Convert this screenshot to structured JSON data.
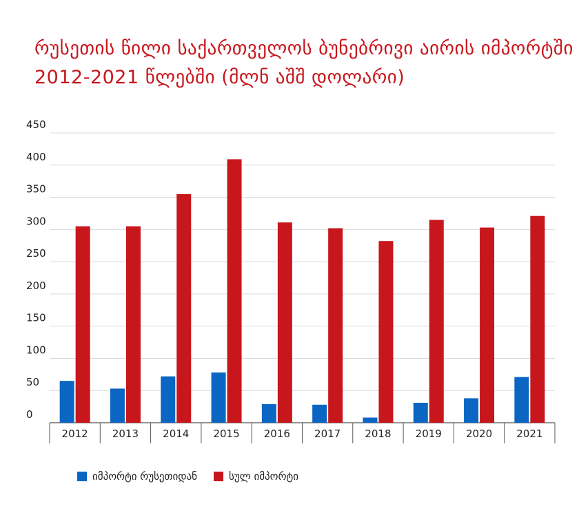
{
  "title": {
    "line1": "რუსეთის წილი საქართველოს ბუნებრივი აირის იმპორტში",
    "line2": "2012-2021 წლებში (მლნ აშშ დოლარი)"
  },
  "colors": {
    "title": "#c8161d",
    "series_russia": "#0a66c2",
    "series_total": "#c8161d",
    "grid": "#d9d9d9",
    "axis": "#555555",
    "text": "#222222"
  },
  "chart_data": {
    "type": "bar",
    "categories": [
      "2012",
      "2013",
      "2014",
      "2015",
      "2016",
      "2017",
      "2018",
      "2019",
      "2020",
      "2021"
    ],
    "series": [
      {
        "name": "იმპორტი რუსეთიდან",
        "values": [
          65,
          53,
          72,
          78,
          29,
          28,
          8,
          31,
          38,
          71
        ]
      },
      {
        "name": "სულ იმპორტი",
        "values": [
          305,
          305,
          355,
          409,
          311,
          302,
          282,
          315,
          303,
          321
        ]
      }
    ],
    "y_ticks": [
      "0",
      "50",
      "100",
      "150",
      "200",
      "250",
      "300",
      "350",
      "400",
      "450"
    ],
    "ylim": [
      0,
      450
    ],
    "grid": true,
    "legend_position": "bottom-left"
  }
}
